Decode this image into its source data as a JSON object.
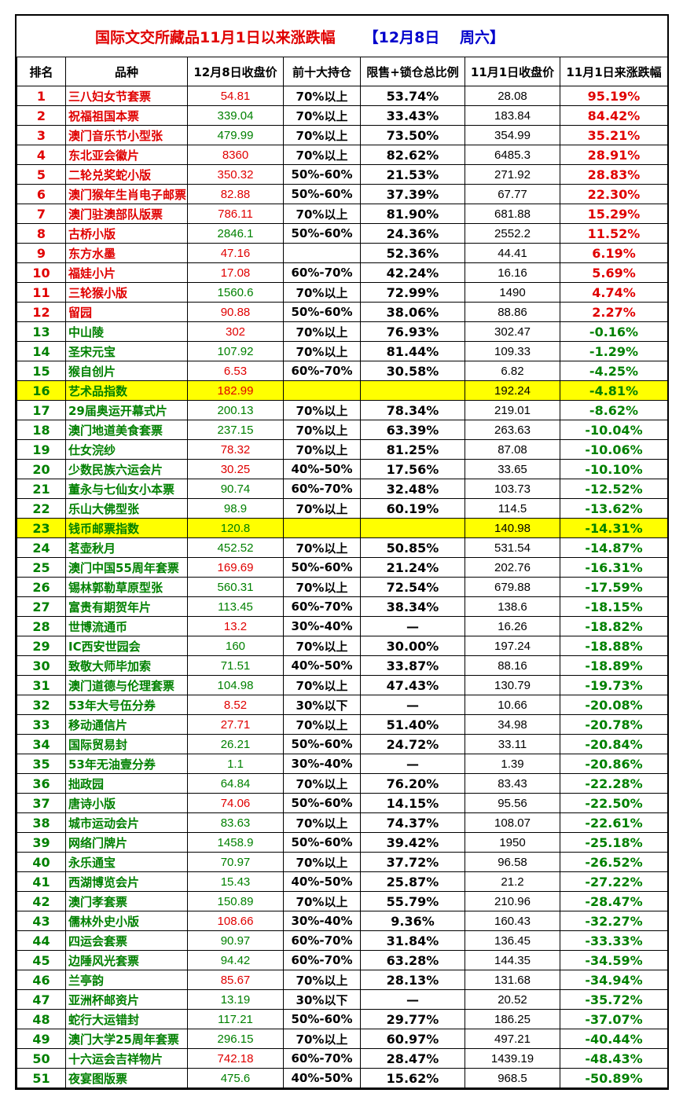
{
  "title": "国际文交所藏品11月1日以来涨跌幅",
  "date": "【12月8日　 周六】",
  "headers": [
    "排名",
    "品种",
    "12月8日收盘价",
    "前十大持仓",
    "限售+锁仓总比例",
    "11月1日收盘价",
    "11月1日来涨跌幅"
  ],
  "colors": {
    "up": "#e00000",
    "down": "#008000",
    "highlight": "#ffff00"
  },
  "rows": [
    {
      "rank": "1",
      "name": "三八妇女节套票",
      "close": "54.81",
      "hold": "70%以上",
      "ratio": "53.74%",
      "prev": "28.08",
      "change": "95.19%",
      "close_color": "red",
      "name_color": "red",
      "change_color": "red",
      "hl": false
    },
    {
      "rank": "2",
      "name": "祝福祖国本票",
      "close": "339.04",
      "hold": "70%以上",
      "ratio": "33.43%",
      "prev": "183.84",
      "change": "84.42%",
      "close_color": "green",
      "name_color": "red",
      "change_color": "red",
      "hl": false
    },
    {
      "rank": "3",
      "name": "澳门音乐节小型张",
      "close": "479.99",
      "hold": "70%以上",
      "ratio": "73.50%",
      "prev": "354.99",
      "change": "35.21%",
      "close_color": "green",
      "name_color": "red",
      "change_color": "red",
      "hl": false
    },
    {
      "rank": "4",
      "name": "东北亚会徽片",
      "close": "8360",
      "hold": "70%以上",
      "ratio": "82.62%",
      "prev": "6485.3",
      "change": "28.91%",
      "close_color": "red",
      "name_color": "red",
      "change_color": "red",
      "hl": false
    },
    {
      "rank": "5",
      "name": "二轮兑奖蛇小版",
      "close": "350.32",
      "hold": "50%-60%",
      "ratio": "21.53%",
      "prev": "271.92",
      "change": "28.83%",
      "close_color": "red",
      "name_color": "red",
      "change_color": "red",
      "hl": false
    },
    {
      "rank": "6",
      "name": "澳门猴年生肖电子邮票",
      "close": "82.88",
      "hold": "50%-60%",
      "ratio": "37.39%",
      "prev": "67.77",
      "change": "22.30%",
      "close_color": "red",
      "name_color": "red",
      "change_color": "red",
      "hl": false
    },
    {
      "rank": "7",
      "name": "澳门驻澳部队版票",
      "close": "786.11",
      "hold": "70%以上",
      "ratio": "81.90%",
      "prev": "681.88",
      "change": "15.29%",
      "close_color": "red",
      "name_color": "red",
      "change_color": "red",
      "hl": false
    },
    {
      "rank": "8",
      "name": "古桥小版",
      "close": "2846.1",
      "hold": "50%-60%",
      "ratio": "24.36%",
      "prev": "2552.2",
      "change": "11.52%",
      "close_color": "green",
      "name_color": "red",
      "change_color": "red",
      "hl": false
    },
    {
      "rank": "9",
      "name": "东方水墨",
      "close": "47.16",
      "hold": "",
      "ratio": "52.36%",
      "prev": "44.41",
      "change": "6.19%",
      "close_color": "red",
      "name_color": "red",
      "change_color": "red",
      "hl": false
    },
    {
      "rank": "10",
      "name": "福娃小片",
      "close": "17.08",
      "hold": "60%-70%",
      "ratio": "42.24%",
      "prev": "16.16",
      "change": "5.69%",
      "close_color": "red",
      "name_color": "red",
      "change_color": "red",
      "hl": false
    },
    {
      "rank": "11",
      "name": "三轮猴小版",
      "close": "1560.6",
      "hold": "70%以上",
      "ratio": "72.99%",
      "prev": "1490",
      "change": "4.74%",
      "close_color": "green",
      "name_color": "red",
      "change_color": "red",
      "hl": false
    },
    {
      "rank": "12",
      "name": "留园",
      "close": "90.88",
      "hold": "50%-60%",
      "ratio": "38.06%",
      "prev": "88.86",
      "change": "2.27%",
      "close_color": "red",
      "name_color": "red",
      "change_color": "red",
      "hl": false
    },
    {
      "rank": "13",
      "name": "中山陵",
      "close": "302",
      "hold": "70%以上",
      "ratio": "76.93%",
      "prev": "302.47",
      "change": "-0.16%",
      "close_color": "red",
      "name_color": "green",
      "change_color": "green",
      "hl": false
    },
    {
      "rank": "14",
      "name": "圣宋元宝",
      "close": "107.92",
      "hold": "70%以上",
      "ratio": "81.44%",
      "prev": "109.33",
      "change": "-1.29%",
      "close_color": "green",
      "name_color": "green",
      "change_color": "green",
      "hl": false
    },
    {
      "rank": "15",
      "name": "猴自创片",
      "close": "6.53",
      "hold": "60%-70%",
      "ratio": "30.58%",
      "prev": "6.82",
      "change": "-4.25%",
      "close_color": "red",
      "name_color": "green",
      "change_color": "green",
      "hl": false
    },
    {
      "rank": "16",
      "name": "艺术品指数",
      "close": "182.99",
      "hold": "",
      "ratio": "",
      "prev": "192.24",
      "change": "-4.81%",
      "close_color": "red",
      "name_color": "green",
      "change_color": "green",
      "hl": true
    },
    {
      "rank": "17",
      "name": "29届奥运开幕式片",
      "close": "200.13",
      "hold": "70%以上",
      "ratio": "78.34%",
      "prev": "219.01",
      "change": "-8.62%",
      "close_color": "green",
      "name_color": "green",
      "change_color": "green",
      "hl": false
    },
    {
      "rank": "18",
      "name": "澳门地道美食套票",
      "close": "237.15",
      "hold": "70%以上",
      "ratio": "63.39%",
      "prev": "263.63",
      "change": "-10.04%",
      "close_color": "green",
      "name_color": "green",
      "change_color": "green",
      "hl": false
    },
    {
      "rank": "19",
      "name": "仕女浣纱",
      "close": "78.32",
      "hold": "70%以上",
      "ratio": "81.25%",
      "prev": "87.08",
      "change": "-10.06%",
      "close_color": "red",
      "name_color": "green",
      "change_color": "green",
      "hl": false
    },
    {
      "rank": "20",
      "name": "少数民族六运会片",
      "close": "30.25",
      "hold": "40%-50%",
      "ratio": "17.56%",
      "prev": "33.65",
      "change": "-10.10%",
      "close_color": "red",
      "name_color": "green",
      "change_color": "green",
      "hl": false
    },
    {
      "rank": "21",
      "name": "董永与七仙女小本票",
      "close": "90.74",
      "hold": "60%-70%",
      "ratio": "32.48%",
      "prev": "103.73",
      "change": "-12.52%",
      "close_color": "green",
      "name_color": "green",
      "change_color": "green",
      "hl": false
    },
    {
      "rank": "22",
      "name": "乐山大佛型张",
      "close": "98.9",
      "hold": "70%以上",
      "ratio": "60.19%",
      "prev": "114.5",
      "change": "-13.62%",
      "close_color": "green",
      "name_color": "green",
      "change_color": "green",
      "hl": false
    },
    {
      "rank": "23",
      "name": "钱币邮票指数",
      "close": "120.8",
      "hold": "",
      "ratio": "",
      "prev": "140.98",
      "change": "-14.31%",
      "close_color": "green",
      "name_color": "green",
      "change_color": "green",
      "hl": true
    },
    {
      "rank": "24",
      "name": "茗壶秋月",
      "close": "452.52",
      "hold": "70%以上",
      "ratio": "50.85%",
      "prev": "531.54",
      "change": "-14.87%",
      "close_color": "green",
      "name_color": "green",
      "change_color": "green",
      "hl": false
    },
    {
      "rank": "25",
      "name": "澳门中国55周年套票",
      "close": "169.69",
      "hold": "50%-60%",
      "ratio": "21.24%",
      "prev": "202.76",
      "change": "-16.31%",
      "close_color": "red",
      "name_color": "green",
      "change_color": "green",
      "hl": false
    },
    {
      "rank": "26",
      "name": "锡林郭勒草原型张",
      "close": "560.31",
      "hold": "70%以上",
      "ratio": "72.54%",
      "prev": "679.88",
      "change": "-17.59%",
      "close_color": "green",
      "name_color": "green",
      "change_color": "green",
      "hl": false
    },
    {
      "rank": "27",
      "name": "富贵有期贺年片",
      "close": "113.45",
      "hold": "60%-70%",
      "ratio": "38.34%",
      "prev": "138.6",
      "change": "-18.15%",
      "close_color": "green",
      "name_color": "green",
      "change_color": "green",
      "hl": false
    },
    {
      "rank": "28",
      "name": "世博流通币",
      "close": "13.2",
      "hold": "30%-40%",
      "ratio": "—",
      "prev": "16.26",
      "change": "-18.82%",
      "close_color": "red",
      "name_color": "green",
      "change_color": "green",
      "hl": false
    },
    {
      "rank": "29",
      "name": "IC西安世园会",
      "close": "160",
      "hold": "70%以上",
      "ratio": "30.00%",
      "prev": "197.24",
      "change": "-18.88%",
      "close_color": "green",
      "name_color": "green",
      "change_color": "green",
      "hl": false
    },
    {
      "rank": "30",
      "name": "致敬大师毕加索",
      "close": "71.51",
      "hold": "40%-50%",
      "ratio": "33.87%",
      "prev": "88.16",
      "change": "-18.89%",
      "close_color": "green",
      "name_color": "green",
      "change_color": "green",
      "hl": false
    },
    {
      "rank": "31",
      "name": "澳门道德与伦理套票",
      "close": "104.98",
      "hold": "70%以上",
      "ratio": "47.43%",
      "prev": "130.79",
      "change": "-19.73%",
      "close_color": "green",
      "name_color": "green",
      "change_color": "green",
      "hl": false
    },
    {
      "rank": "32",
      "name": "53年大号伍分券",
      "close": "8.52",
      "hold": "30%以下",
      "ratio": "—",
      "prev": "10.66",
      "change": "-20.08%",
      "close_color": "red",
      "name_color": "green",
      "change_color": "green",
      "hl": false
    },
    {
      "rank": "33",
      "name": "移动通信片",
      "close": "27.71",
      "hold": "70%以上",
      "ratio": "51.40%",
      "prev": "34.98",
      "change": "-20.78%",
      "close_color": "red",
      "name_color": "green",
      "change_color": "green",
      "hl": false
    },
    {
      "rank": "34",
      "name": "国际贸易封",
      "close": "26.21",
      "hold": "50%-60%",
      "ratio": "24.72%",
      "prev": "33.11",
      "change": "-20.84%",
      "close_color": "green",
      "name_color": "green",
      "change_color": "green",
      "hl": false
    },
    {
      "rank": "35",
      "name": "53年无油壹分券",
      "close": "1.1",
      "hold": "30%-40%",
      "ratio": "—",
      "prev": "1.39",
      "change": "-20.86%",
      "close_color": "green",
      "name_color": "green",
      "change_color": "green",
      "hl": false
    },
    {
      "rank": "36",
      "name": "拙政园",
      "close": "64.84",
      "hold": "70%以上",
      "ratio": "76.20%",
      "prev": "83.43",
      "change": "-22.28%",
      "close_color": "green",
      "name_color": "green",
      "change_color": "green",
      "hl": false
    },
    {
      "rank": "37",
      "name": "唐诗小版",
      "close": "74.06",
      "hold": "50%-60%",
      "ratio": "14.15%",
      "prev": "95.56",
      "change": "-22.50%",
      "close_color": "red",
      "name_color": "green",
      "change_color": "green",
      "hl": false
    },
    {
      "rank": "38",
      "name": "城市运动会片",
      "close": "83.63",
      "hold": "70%以上",
      "ratio": "74.37%",
      "prev": "108.07",
      "change": "-22.61%",
      "close_color": "green",
      "name_color": "green",
      "change_color": "green",
      "hl": false
    },
    {
      "rank": "39",
      "name": "网络门牌片",
      "close": "1458.9",
      "hold": "50%-60%",
      "ratio": "39.42%",
      "prev": "1950",
      "change": "-25.18%",
      "close_color": "green",
      "name_color": "green",
      "change_color": "green",
      "hl": false
    },
    {
      "rank": "40",
      "name": "永乐通宝",
      "close": "70.97",
      "hold": "70%以上",
      "ratio": "37.72%",
      "prev": "96.58",
      "change": "-26.52%",
      "close_color": "green",
      "name_color": "green",
      "change_color": "green",
      "hl": false
    },
    {
      "rank": "41",
      "name": "西湖博览会片",
      "close": "15.43",
      "hold": "40%-50%",
      "ratio": "25.87%",
      "prev": "21.2",
      "change": "-27.22%",
      "close_color": "green",
      "name_color": "green",
      "change_color": "green",
      "hl": false
    },
    {
      "rank": "42",
      "name": "澳门孝套票",
      "close": "150.89",
      "hold": "70%以上",
      "ratio": "55.79%",
      "prev": "210.96",
      "change": "-28.47%",
      "close_color": "green",
      "name_color": "green",
      "change_color": "green",
      "hl": false
    },
    {
      "rank": "43",
      "name": "儒林外史小版",
      "close": "108.66",
      "hold": "30%-40%",
      "ratio": "9.36%",
      "prev": "160.43",
      "change": "-32.27%",
      "close_color": "red",
      "name_color": "green",
      "change_color": "green",
      "hl": false
    },
    {
      "rank": "44",
      "name": "四运会套票",
      "close": "90.97",
      "hold": "60%-70%",
      "ratio": "31.84%",
      "prev": "136.45",
      "change": "-33.33%",
      "close_color": "green",
      "name_color": "green",
      "change_color": "green",
      "hl": false
    },
    {
      "rank": "45",
      "name": "边陲风光套票",
      "close": "94.42",
      "hold": "60%-70%",
      "ratio": "63.28%",
      "prev": "144.35",
      "change": "-34.59%",
      "close_color": "green",
      "name_color": "green",
      "change_color": "green",
      "hl": false
    },
    {
      "rank": "46",
      "name": "兰亭韵",
      "close": "85.67",
      "hold": "70%以上",
      "ratio": "28.13%",
      "prev": "131.68",
      "change": "-34.94%",
      "close_color": "red",
      "name_color": "green",
      "change_color": "green",
      "hl": false
    },
    {
      "rank": "47",
      "name": "亚洲杯邮资片",
      "close": "13.19",
      "hold": "30%以下",
      "ratio": "—",
      "prev": "20.52",
      "change": "-35.72%",
      "close_color": "green",
      "name_color": "green",
      "change_color": "green",
      "hl": false
    },
    {
      "rank": "48",
      "name": "蛇行大运错封",
      "close": "117.21",
      "hold": "50%-60%",
      "ratio": "29.77%",
      "prev": "186.25",
      "change": "-37.07%",
      "close_color": "green",
      "name_color": "green",
      "change_color": "green",
      "hl": false
    },
    {
      "rank": "49",
      "name": "澳门大学25周年套票",
      "close": "296.15",
      "hold": "70%以上",
      "ratio": "60.97%",
      "prev": "497.21",
      "change": "-40.44%",
      "close_color": "green",
      "name_color": "green",
      "change_color": "green",
      "hl": false
    },
    {
      "rank": "50",
      "name": "十六运会吉祥物片",
      "close": "742.18",
      "hold": "60%-70%",
      "ratio": "28.47%",
      "prev": "1439.19",
      "change": "-48.43%",
      "close_color": "red",
      "name_color": "green",
      "change_color": "green",
      "hl": false
    },
    {
      "rank": "51",
      "name": "夜宴图版票",
      "close": "475.6",
      "hold": "40%-50%",
      "ratio": "15.62%",
      "prev": "968.5",
      "change": "-50.89%",
      "close_color": "green",
      "name_color": "green",
      "change_color": "green",
      "hl": false
    }
  ]
}
